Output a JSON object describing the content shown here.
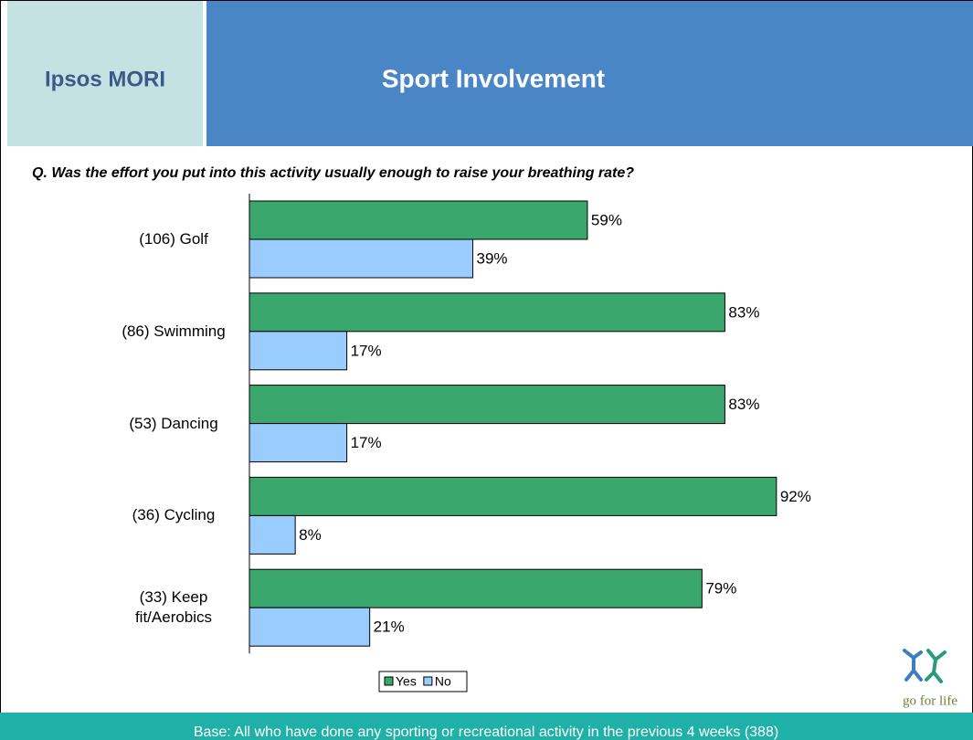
{
  "brand": "Ipsos MORI",
  "logo": "go for life",
  "footer": "Base: All who have done any sporting or recreational activity in the previous 4 weeks (388)",
  "chart_data": {
    "type": "bar",
    "orientation": "horizontal",
    "title": "Sport Involvement",
    "subtitle": "Q. Was the effort you put into this activity usually enough to raise your breathing rate?",
    "categories": [
      "(106) Golf",
      "(86) Swimming",
      "(53) Dancing",
      "(36) Cycling",
      "(33) Keep fit/Aerobics"
    ],
    "series": [
      {
        "name": "Yes",
        "color": "#3aa76d",
        "values": [
          59,
          83,
          83,
          92,
          79
        ],
        "value_labels": [
          "59%",
          "83%",
          "83%",
          "92%",
          "79%"
        ]
      },
      {
        "name": "No",
        "color": "#99ccff",
        "values": [
          39,
          17,
          17,
          8,
          21
        ],
        "value_labels": [
          "39%",
          "17%",
          "17%",
          "8%",
          "21%"
        ]
      }
    ],
    "xlim": [
      0,
      100
    ],
    "legend": "bottom"
  }
}
